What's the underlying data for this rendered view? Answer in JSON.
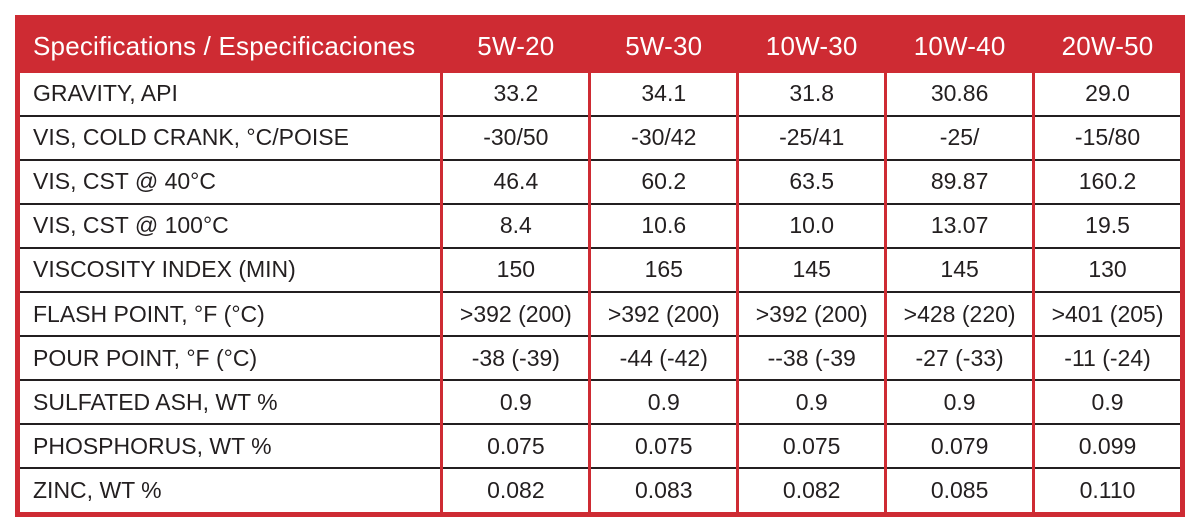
{
  "colors": {
    "brand_red": "#ce2b33",
    "text_ink": "#231f20",
    "header_text": "#ffffff",
    "background": "#ffffff"
  },
  "chart_data": {
    "type": "table",
    "title": "Specifications / Especificaciones",
    "header": [
      "Specifications / Especificaciones",
      "5W-20",
      "5W-30",
      "10W-30",
      "10W-40",
      "20W-50"
    ],
    "rows": [
      {
        "label": "GRAVITY, API",
        "values": [
          "33.2",
          "34.1",
          "31.8",
          "30.86",
          "29.0"
        ]
      },
      {
        "label": "VIS, COLD CRANK, °C/POISE",
        "values": [
          "-30/50",
          "-30/42",
          "-25/41",
          "-25/",
          "-15/80"
        ]
      },
      {
        "label": "VIS, CST @ 40°C",
        "values": [
          "46.4",
          "60.2",
          "63.5",
          "89.87",
          "160.2"
        ]
      },
      {
        "label": "VIS, CST @ 100°C",
        "values": [
          "8.4",
          "10.6",
          "10.0",
          "13.07",
          "19.5"
        ]
      },
      {
        "label": "VISCOSITY INDEX (MIN)",
        "values": [
          "150",
          "165",
          "145",
          "145",
          "130"
        ]
      },
      {
        "label": "FLASH POINT, °F (°C)",
        "values": [
          ">392 (200)",
          ">392 (200)",
          ">392 (200)",
          ">428 (220)",
          ">401 (205)"
        ]
      },
      {
        "label": "POUR POINT, °F (°C)",
        "values": [
          "-38 (-39)",
          "-44 (-42)",
          "--38 (-39",
          "-27 (-33)",
          "-11 (-24)"
        ]
      },
      {
        "label": "SULFATED ASH, WT %",
        "values": [
          "0.9",
          "0.9",
          "0.9",
          "0.9",
          "0.9"
        ]
      },
      {
        "label": "PHOSPHORUS, WT %",
        "values": [
          "0.075",
          "0.075",
          "0.075",
          "0.079",
          "0.099"
        ]
      },
      {
        "label": "ZINC, WT %",
        "values": [
          "0.082",
          "0.083",
          "0.082",
          "0.085",
          "0.110"
        ]
      }
    ]
  }
}
